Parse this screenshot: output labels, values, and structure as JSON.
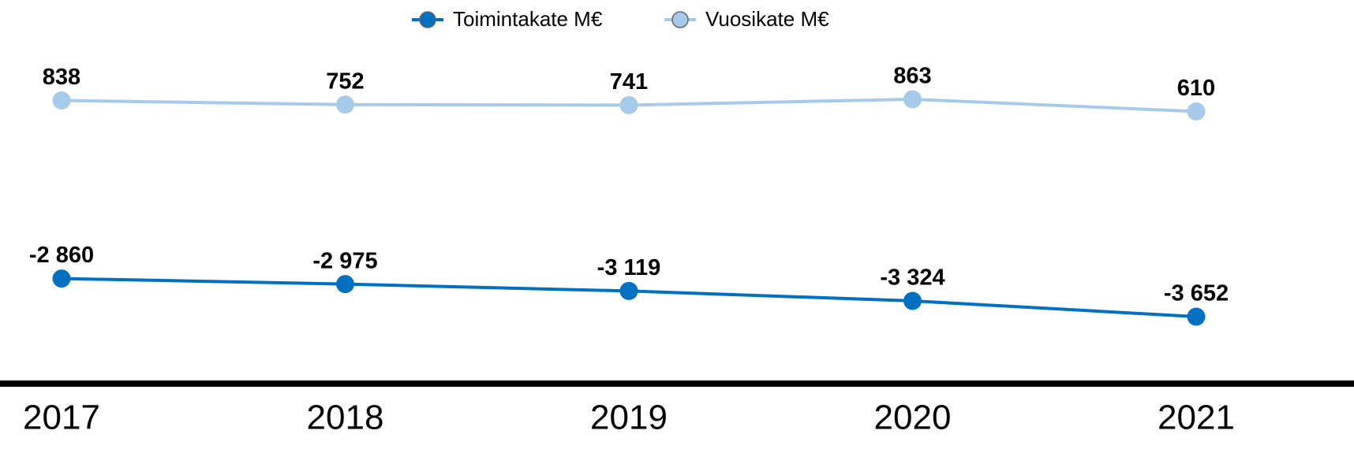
{
  "chart_data": {
    "type": "line",
    "categories": [
      "2017",
      "2018",
      "2019",
      "2020",
      "2021"
    ],
    "series": [
      {
        "name": "Toimintakate M€",
        "color": "#0070c0",
        "values": [
          -2860,
          -2975,
          -3119,
          -3324,
          -3652
        ],
        "value_labels": [
          "-2 860",
          "-2 975",
          "-3 119",
          "-3 324",
          "-3 652"
        ]
      },
      {
        "name": "Vuosikate M€",
        "color": "#a6cbea",
        "values": [
          838,
          752,
          741,
          863,
          610
        ]
      }
    ],
    "legend": "top"
  }
}
